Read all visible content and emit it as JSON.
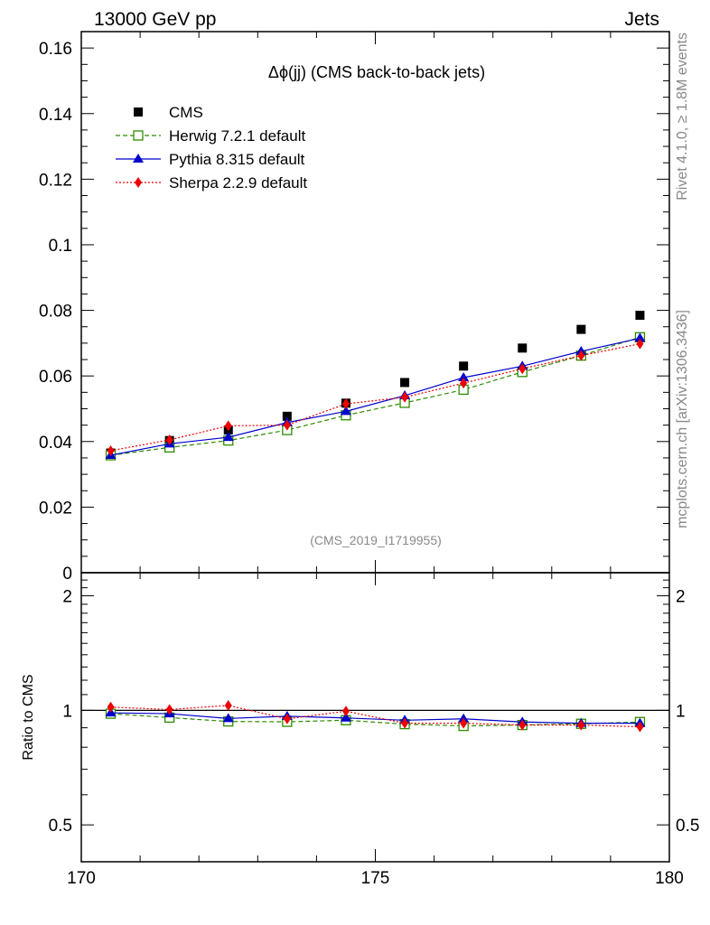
{
  "header": {
    "left": "13000 GeV pp",
    "right": "Jets"
  },
  "side_text": {
    "rivet": "Rivet 4.1.0, ≥ 1.8M events",
    "mcplots": "mcplots.cern.ch [arXiv:1306.3436]"
  },
  "watermark": "(CMS_2019_I1719955)",
  "colors": {
    "cms": "#000000",
    "herwig": "#2e8b00",
    "pythia": "#0000cc",
    "sherpa": "#ee0000"
  },
  "chart_data": [
    {
      "type": "line",
      "title": "Δϕ(jj) (CMS back-to-back jets)",
      "xlabel": "",
      "ylabel": "",
      "xlim": [
        170,
        180
      ],
      "ylim": [
        0,
        0.165
      ],
      "yticks": [
        0,
        0.02,
        0.04,
        0.06,
        0.08,
        0.1,
        0.12,
        0.14,
        0.16
      ],
      "ytick_labels": [
        "0",
        "0.02",
        "0.04",
        "0.06",
        "0.08",
        "0.1",
        "0.12",
        "0.14",
        "0.16"
      ],
      "x": [
        170.5,
        171.5,
        172.5,
        173.5,
        174.5,
        175.5,
        176.5,
        177.5,
        178.5,
        179.5
      ],
      "legend_position": "top-left",
      "series": [
        {
          "name": "CMS",
          "style": "points",
          "marker": "square",
          "values": [
            0.0365,
            0.0403,
            0.0435,
            0.0477,
            0.0517,
            0.058,
            0.063,
            0.0685,
            0.0742,
            0.0785
          ]
        },
        {
          "name": "Herwig 7.2.1 default",
          "style": "dashed",
          "marker": "open-square",
          "values": [
            0.0358,
            0.0382,
            0.0403,
            0.0435,
            0.048,
            0.0518,
            0.0558,
            0.0612,
            0.0662,
            0.0718
          ]
        },
        {
          "name": "Pythia 8.315 default",
          "style": "solid",
          "marker": "triangle",
          "values": [
            0.0358,
            0.0393,
            0.0413,
            0.0458,
            0.0492,
            0.054,
            0.0595,
            0.063,
            0.0675,
            0.0715
          ]
        },
        {
          "name": "Sherpa 2.2.9 default",
          "style": "dotted",
          "marker": "diamond",
          "values": [
            0.0372,
            0.0405,
            0.0448,
            0.045,
            0.0515,
            0.0535,
            0.0578,
            0.0622,
            0.0662,
            0.0698
          ]
        }
      ]
    },
    {
      "type": "line",
      "title": "",
      "xlabel": "",
      "ylabel": "Ratio to CMS",
      "xlim": [
        170,
        180
      ],
      "ylim": [
        0.4,
        2.3
      ],
      "yscale": "log",
      "yticks": [
        0.5,
        1,
        2
      ],
      "ytick_labels": [
        "0.5",
        "1",
        "2"
      ],
      "xticks": [
        170,
        175,
        180
      ],
      "xtick_labels": [
        "170",
        "175",
        "180"
      ],
      "x": [
        170.5,
        171.5,
        172.5,
        173.5,
        174.5,
        175.5,
        176.5,
        177.5,
        178.5,
        179.5
      ],
      "reference": 1,
      "series": [
        {
          "name": "Herwig 7.2.1 default",
          "style": "dashed",
          "marker": "open-square",
          "values": [
            0.98,
            0.957,
            0.935,
            0.933,
            0.942,
            0.92,
            0.91,
            0.915,
            0.922,
            0.932
          ]
        },
        {
          "name": "Pythia 8.315 default",
          "style": "solid",
          "marker": "triangle",
          "values": [
            0.985,
            0.98,
            0.952,
            0.965,
            0.955,
            0.942,
            0.95,
            0.932,
            0.925,
            0.925
          ]
        },
        {
          "name": "Sherpa 2.2.9 default",
          "style": "dotted",
          "marker": "diamond",
          "values": [
            1.02,
            1.005,
            1.03,
            0.95,
            0.995,
            0.925,
            0.925,
            0.915,
            0.915,
            0.905
          ]
        }
      ]
    }
  ]
}
